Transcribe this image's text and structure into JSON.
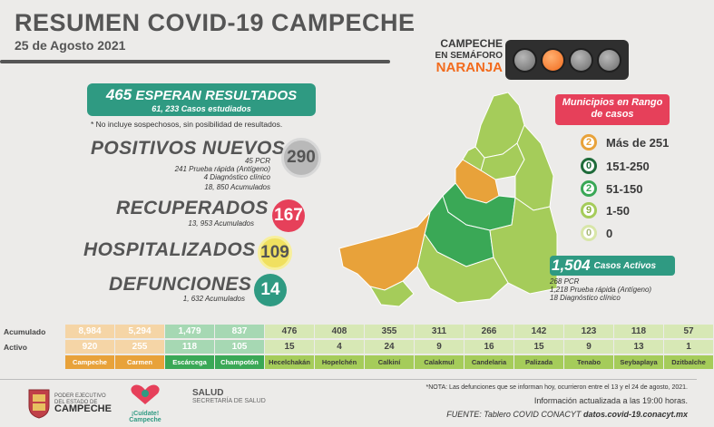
{
  "header": {
    "title": "RESUMEN COVID-19 CAMPECHE",
    "date": "25 de Agosto 2021"
  },
  "semaforo": {
    "line1": "CAMPECHE",
    "line2": "EN SEMÁFORO",
    "color_label": "NARANJA",
    "active_light": 2
  },
  "esperan": {
    "count": "465",
    "label": "ESPERAN RESULTADOS",
    "studied": "61, 233 Casos estudiados",
    "note": "* No incluye sospechosos, sin posibilidad de resultados."
  },
  "positivos": {
    "label": "POSITIVOS NUEVOS",
    "value": "290",
    "pcr": "45 PCR",
    "rapida": "241 Prueba rápida (Antígeno)",
    "clinico": "4 Diagnóstico clínico",
    "acumulados": "18, 850 Acumulados"
  },
  "recuperados": {
    "label": "RECUPERADOS",
    "value": "167",
    "acumulados": "13, 953 Acumulados"
  },
  "hospitalizados": {
    "label": "HOSPITALIZADOS",
    "value": "109"
  },
  "defunciones": {
    "label": "DEFUNCIONES",
    "value": "14",
    "acumulados": "1, 632 Acumulados"
  },
  "legend": {
    "title": "Municipios en Rango de casos",
    "rows": [
      {
        "count": "2",
        "range": "Más de 251",
        "color": "#e8a23a"
      },
      {
        "count": "0",
        "range": "151-250",
        "color": "#1f6b3a"
      },
      {
        "count": "2",
        "range": "51-150",
        "color": "#3aa856"
      },
      {
        "count": "9",
        "range": "1-50",
        "color": "#a5cc5a"
      },
      {
        "count": "0",
        "range": "0",
        "color": "#d8e6a8"
      }
    ]
  },
  "activos": {
    "count": "1,504",
    "label": "Casos Activos",
    "pcr": "268 PCR",
    "rapida": "1,218 Prueba rápida (Antígeno)",
    "clinico": "18 Diagnóstico clínico"
  },
  "table": {
    "row_labels": [
      "Acumulado",
      "Activo"
    ],
    "municipios": [
      {
        "name": "Campeche",
        "acumulado": "8,984",
        "activo": "920",
        "color": "#e8a23a"
      },
      {
        "name": "Carmen",
        "acumulado": "5,294",
        "activo": "255",
        "color": "#e8a23a"
      },
      {
        "name": "Escárcega",
        "acumulado": "1,479",
        "activo": "118",
        "color": "#3aa856"
      },
      {
        "name": "Champotón",
        "acumulado": "837",
        "activo": "105",
        "color": "#3aa856"
      },
      {
        "name": "Hecelchakán",
        "acumulado": "476",
        "activo": "15",
        "color": "#a5cc5a"
      },
      {
        "name": "Hopelchén",
        "acumulado": "408",
        "activo": "4",
        "color": "#a5cc5a"
      },
      {
        "name": "Calkiní",
        "acumulado": "355",
        "activo": "24",
        "color": "#a5cc5a"
      },
      {
        "name": "Calakmul",
        "acumulado": "311",
        "activo": "9",
        "color": "#a5cc5a"
      },
      {
        "name": "Candelaria",
        "acumulado": "266",
        "activo": "16",
        "color": "#a5cc5a"
      },
      {
        "name": "Palizada",
        "acumulado": "142",
        "activo": "15",
        "color": "#a5cc5a"
      },
      {
        "name": "Tenabo",
        "acumulado": "123",
        "activo": "9",
        "color": "#a5cc5a"
      },
      {
        "name": "Seybaplaya",
        "acumulado": "118",
        "activo": "13",
        "color": "#a5cc5a"
      },
      {
        "name": "Dzitbalche",
        "acumulado": "57",
        "activo": "1",
        "color": "#a5cc5a"
      }
    ]
  },
  "footer": {
    "gov_small": "PODER EJECUTIVO DEL ESTADO DE",
    "gov_big": "CAMPECHE",
    "cuidate": "¡Cuídate! Campeche",
    "salud": "SALUD",
    "salud_sub": "SECRETARÍA DE SALUD",
    "note": "*NOTA: Las defunciones que se informan hoy, ocurrieron entre el 13 y el 24 de agosto, 2021.",
    "info": "Información actualizada a las 19:00 horas.",
    "source": "FUENTE: Tablero COVID CONACYT",
    "url": "datos.covid-19.conacyt.mx"
  },
  "colors": {
    "orange": "#e8a23a",
    "dark_green": "#1f6b3a",
    "green": "#3aa856",
    "light_green": "#a5cc5a",
    "teal": "#2f9a82",
    "red": "#e6405a"
  }
}
